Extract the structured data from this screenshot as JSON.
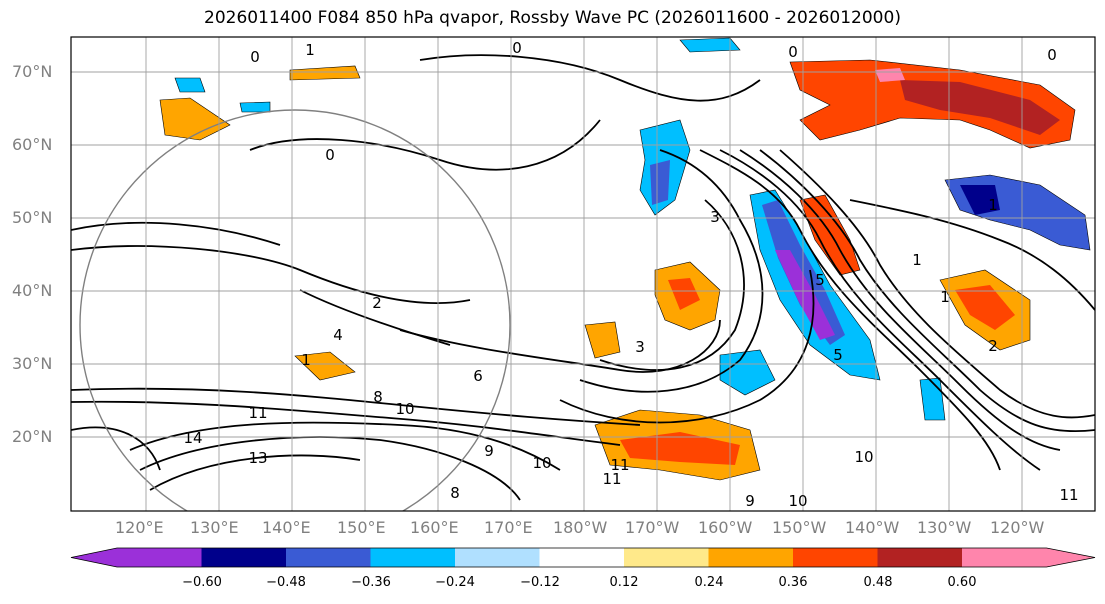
{
  "title": "2026011400 F084 850 hPa qvapor, Rossby Wave PC (2026011600 - 2026012000)",
  "map": {
    "lat_labels": [
      "70°N",
      "60°N",
      "50°N",
      "40°N",
      "30°N",
      "20°N"
    ],
    "lon_labels": [
      "120°E",
      "130°E",
      "140°E",
      "150°E",
      "160°E",
      "170°E",
      "180°W",
      "170°W",
      "160°W",
      "150°W",
      "140°W",
      "130°W",
      "120°W"
    ],
    "contour_labels": [
      "0",
      "1",
      "0",
      "0",
      "0",
      "2",
      "4",
      "3",
      "5",
      "3",
      "6",
      "8",
      "10",
      "11",
      "14",
      "13",
      "11",
      "8",
      "9",
      "10",
      "11",
      "9",
      "10",
      "11",
      "1",
      "2",
      "1",
      "1",
      "0",
      "5",
      "10",
      "1"
    ]
  },
  "colorbar": {
    "tick_labels": [
      "−0.60",
      "−0.48",
      "−0.36",
      "−0.24",
      "−0.12",
      "0.12",
      "0.24",
      "0.36",
      "0.48",
      "0.60"
    ],
    "colors": [
      "#9b30d9",
      "#00008b",
      "#3a5bd4",
      "#00bfff",
      "#b0e0ff",
      "#ffffff",
      "#ffe98a",
      "#ffa500",
      "#ff4500",
      "#b22222",
      "#ff85ac"
    ]
  }
}
